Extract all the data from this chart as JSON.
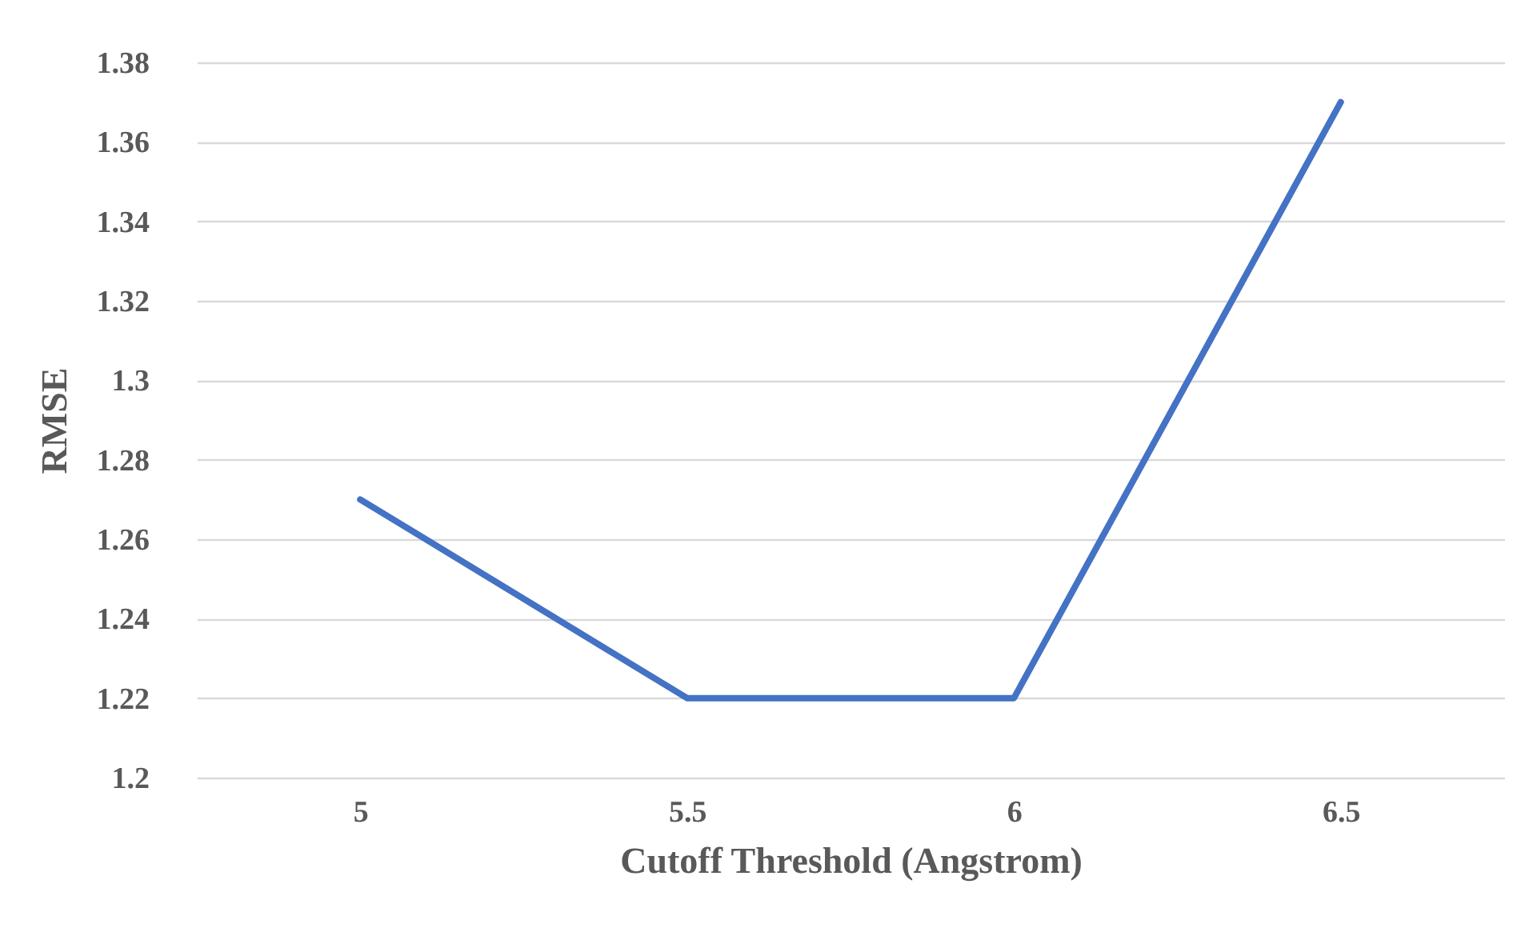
{
  "chart_data": {
    "type": "line",
    "xlabel": "Cutoff Threshold  (Angstrom)",
    "ylabel": "RMSE",
    "categories": [
      "5",
      "5.5",
      "6",
      "6.5"
    ],
    "series": [
      {
        "color": "#4472c4",
        "values": [
          1.27,
          1.22,
          1.22,
          1.37
        ]
      }
    ],
    "ylim": [
      1.2,
      1.38
    ],
    "yticks": [
      1.2,
      1.22,
      1.24,
      1.26,
      1.28,
      1.3,
      1.32,
      1.34,
      1.36,
      1.38
    ],
    "grid": "y",
    "marker": "none",
    "line_style": "solid"
  }
}
